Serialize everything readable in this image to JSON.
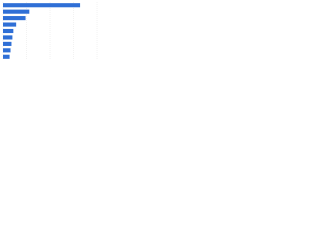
{
  "chart_data": {
    "type": "bar",
    "orientation": "horizontal",
    "categories": [
      null,
      null,
      null,
      null,
      null,
      null,
      null,
      null,
      null
    ],
    "values": [
      82,
      28,
      24,
      14,
      11,
      10,
      9,
      8,
      7
    ],
    "color": "#2f6fd6",
    "xlim": [
      0,
      100
    ],
    "xticks": [
      0,
      25,
      50,
      75,
      100
    ],
    "grid": true
  }
}
